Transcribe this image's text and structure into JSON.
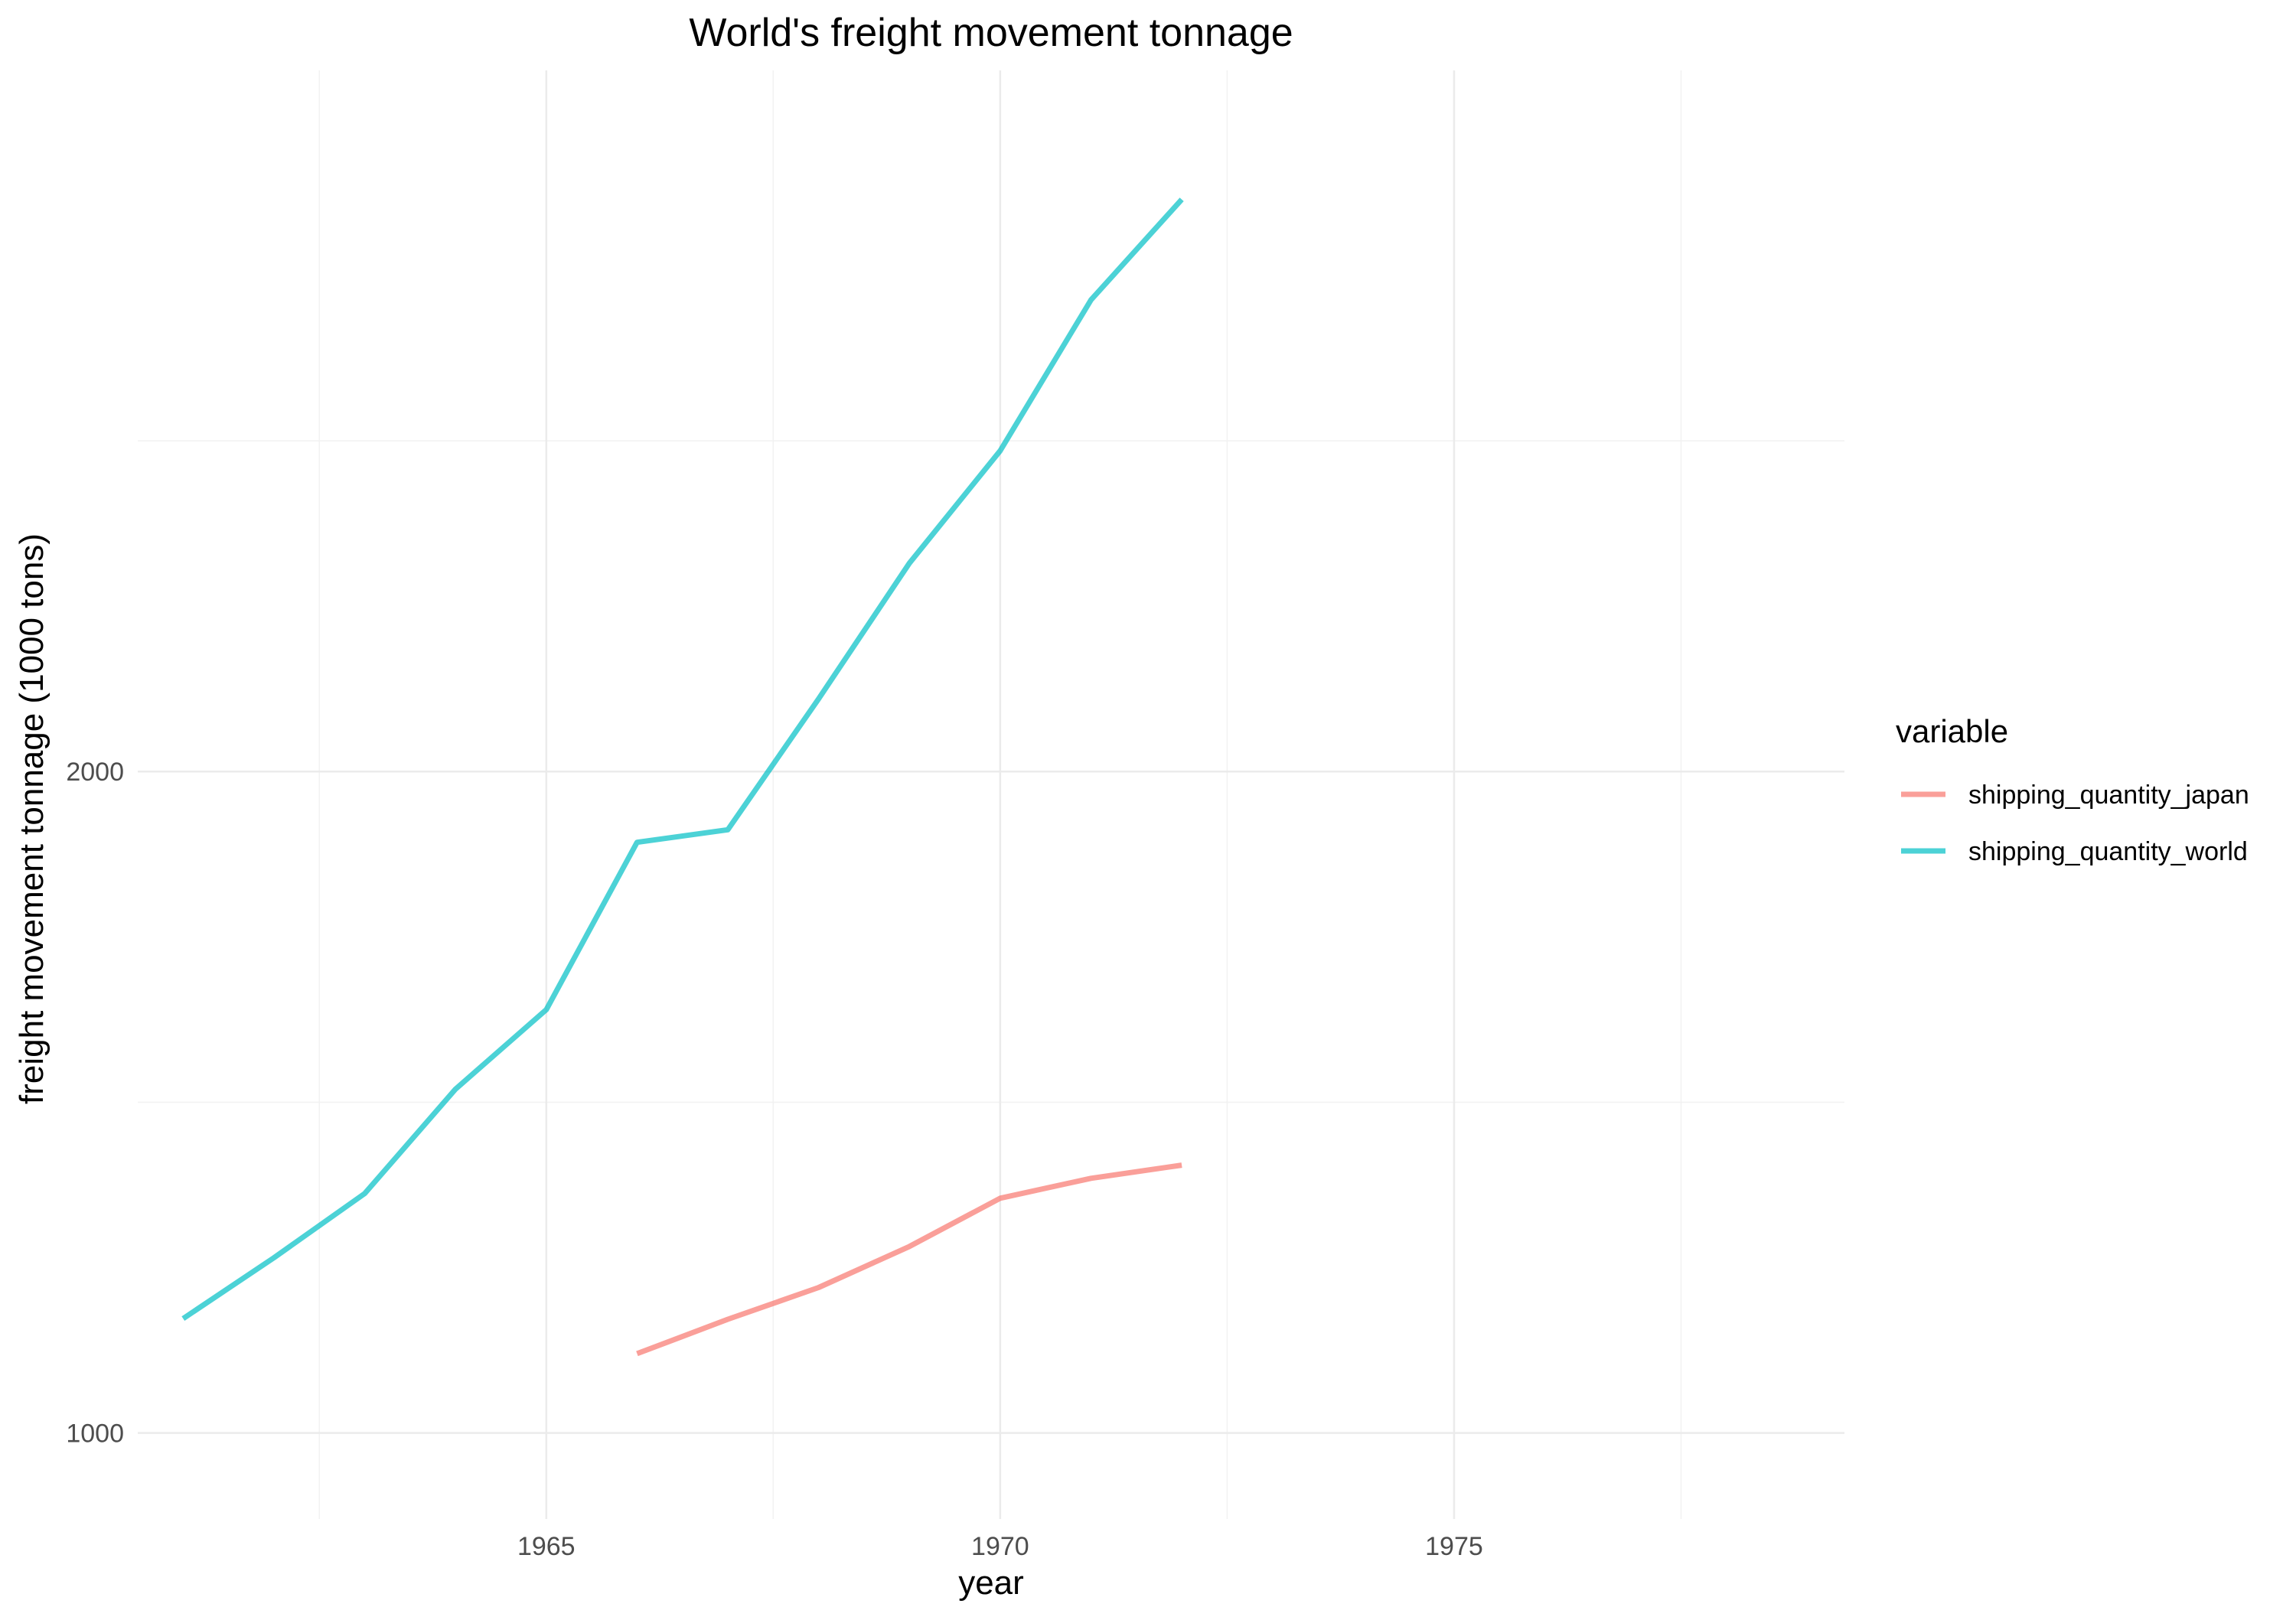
{
  "chart_data": {
    "type": "line",
    "title": "World's freight movement tonnage",
    "xlabel": "year",
    "ylabel": "freight movement tonnage (1000 tons)",
    "xlim": [
      1960.5,
      1979.3
    ],
    "ylim": [
      870,
      3060
    ],
    "x_ticks": [
      1965,
      1970,
      1975
    ],
    "y_ticks": [
      1000,
      2000
    ],
    "x_minor_ticks": [
      1962.5,
      1967.5,
      1972.5,
      1977.5
    ],
    "y_minor_ticks": [
      1500,
      2500
    ],
    "grid": true,
    "legend": {
      "title": "variable",
      "position": "right"
    },
    "series": [
      {
        "name": "shipping_quantity_japan",
        "color": "#F8766D",
        "x": [
          1966,
          1967,
          1968,
          1969,
          1970,
          1971,
          1972
        ],
        "y": [
          1120,
          1172,
          1220,
          1282,
          1355,
          1385,
          1405
        ]
      },
      {
        "name": "shipping_quantity_world",
        "color": "#00BFC4",
        "x": [
          1961,
          1962,
          1963,
          1964,
          1965,
          1966,
          1967,
          1968,
          1969,
          1970,
          1971,
          1972
        ],
        "y": [
          1173,
          1265,
          1362,
          1520,
          1640,
          1893,
          1912,
          2110,
          2315,
          2485,
          2713,
          2865
        ]
      }
    ]
  }
}
